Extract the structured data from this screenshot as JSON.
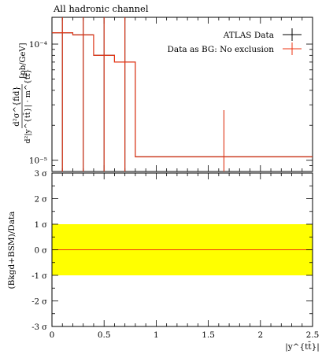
{
  "chart_data": [
    {
      "type": "line",
      "title": "All hadronic channel",
      "ylabel_lines": [
        "d²σ^{fid}",
        "d²|y^{tt̄}| · m^{tt̄}",
        "[pb/GeV]"
      ],
      "ylabel": "d²σ^{fid} / d²|y^{tt̄}|·m^{tt̄} [pb/GeV]",
      "xlabel": "",
      "yscale": "log",
      "ylim": [
        8e-06,
        0.00017
      ],
      "xlim": [
        0,
        2.5
      ],
      "yticks": [
        {
          "value": 1e-05,
          "label": "10⁻⁵"
        },
        {
          "value": 0.0001,
          "label": "10⁻⁴"
        }
      ],
      "legend_position": "top-right",
      "series": [
        {
          "name": "ATLAS Data",
          "color": "#000000",
          "bins": [
            0,
            0.2,
            0.4,
            0.6,
            0.8,
            2.5
          ],
          "values": [
            0.000125,
            0.00012,
            8e-05,
            7e-05,
            1.07e-05
          ],
          "err_low": [
            4.7e-06,
            4.7e-06,
            4.7e-06,
            4.7e-06,
            4.7e-06
          ],
          "err_high": [
            0.00025,
            0.00025,
            0.00021,
            0.00021,
            2.7e-05
          ]
        },
        {
          "name": "Data as BG: No exclusion",
          "color": "#ee3311",
          "bins": [
            0,
            0.2,
            0.4,
            0.6,
            0.8,
            2.5
          ],
          "values": [
            0.000125,
            0.00012,
            8e-05,
            7e-05,
            1.07e-05
          ],
          "err_low": [
            4.7e-06,
            4.7e-06,
            4.7e-06,
            4.7e-06,
            4.7e-06
          ],
          "err_high": [
            0.00025,
            0.00025,
            0.00021,
            0.00021,
            2.7e-05
          ]
        }
      ]
    },
    {
      "type": "line",
      "ylabel": "(Bkgd+BSM)/Data",
      "xlabel": "|y^{tt̄}|",
      "xlim": [
        0,
        2.5
      ],
      "ylim": [
        -3,
        3
      ],
      "xticks": [
        0,
        0.5,
        1,
        1.5,
        2,
        2.5
      ],
      "xtick_labels": [
        "0",
        "0.5",
        "1",
        "1.5",
        "2",
        "2.5"
      ],
      "yticks": [
        3,
        2,
        1,
        0,
        -1,
        -2,
        -3
      ],
      "ytick_labels": [
        "3 σ",
        "2 σ",
        "1 σ",
        "0 σ",
        "-1 σ",
        "-2 σ",
        "-3 σ"
      ],
      "band": {
        "low": -1,
        "high": 1,
        "color": "#ffff00"
      },
      "series": [
        {
          "name": "",
          "color": "#ee3311",
          "x": [
            0,
            2.5
          ],
          "values": [
            0,
            0
          ]
        }
      ]
    }
  ]
}
